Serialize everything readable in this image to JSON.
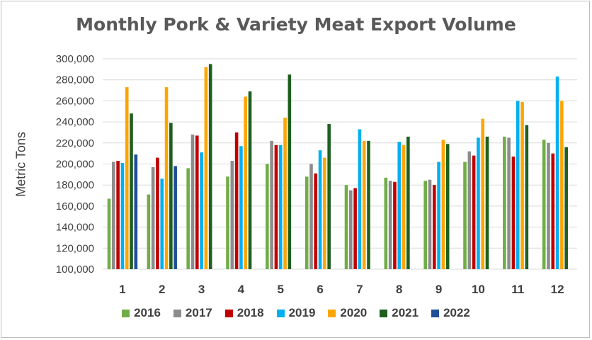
{
  "chart_data": {
    "type": "bar",
    "title": "Monthly Pork & Variety Meat Export Volume",
    "xlabel": "",
    "ylabel": "Metric Tons",
    "ylim": [
      100000,
      300000
    ],
    "yticks": [
      "100,000",
      "120,000",
      "140,000",
      "160,000",
      "180,000",
      "200,000",
      "220,000",
      "240,000",
      "260,000",
      "280,000",
      "300,000"
    ],
    "categories": [
      "1",
      "2",
      "3",
      "4",
      "5",
      "6",
      "7",
      "8",
      "9",
      "10",
      "11",
      "12"
    ],
    "grid": true,
    "legend_position": "bottom",
    "series": [
      {
        "name": "2016",
        "color": "#70ad47",
        "values": [
          167000,
          171000,
          196000,
          188000,
          200000,
          188000,
          180000,
          187000,
          184000,
          202000,
          226000,
          223000
        ]
      },
      {
        "name": "2017",
        "color": "#8c8c8c",
        "values": [
          202000,
          197000,
          228000,
          203000,
          222000,
          200000,
          175000,
          184000,
          185000,
          212000,
          225000,
          220000
        ]
      },
      {
        "name": "2018",
        "color": "#c00000",
        "values": [
          203000,
          206000,
          227000,
          230000,
          218000,
          191000,
          177000,
          183000,
          180000,
          208000,
          207000,
          210000
        ]
      },
      {
        "name": "2019",
        "color": "#00b0f0",
        "values": [
          201000,
          186000,
          211000,
          217000,
          218000,
          213000,
          233000,
          221000,
          202000,
          225000,
          260000,
          283000
        ]
      },
      {
        "name": "2020",
        "color": "#ffa500",
        "values": [
          273000,
          273000,
          292000,
          264000,
          244000,
          206000,
          222000,
          218000,
          223000,
          243000,
          259000,
          260000
        ]
      },
      {
        "name": "2021",
        "color": "#1e5f20",
        "values": [
          248000,
          239000,
          295000,
          269000,
          285000,
          238000,
          222000,
          226000,
          219000,
          226000,
          237000,
          216000
        ]
      },
      {
        "name": "2022",
        "color": "#1f4e96",
        "values": [
          209000,
          198000,
          null,
          null,
          null,
          null,
          null,
          null,
          null,
          null,
          null,
          null
        ]
      }
    ]
  }
}
